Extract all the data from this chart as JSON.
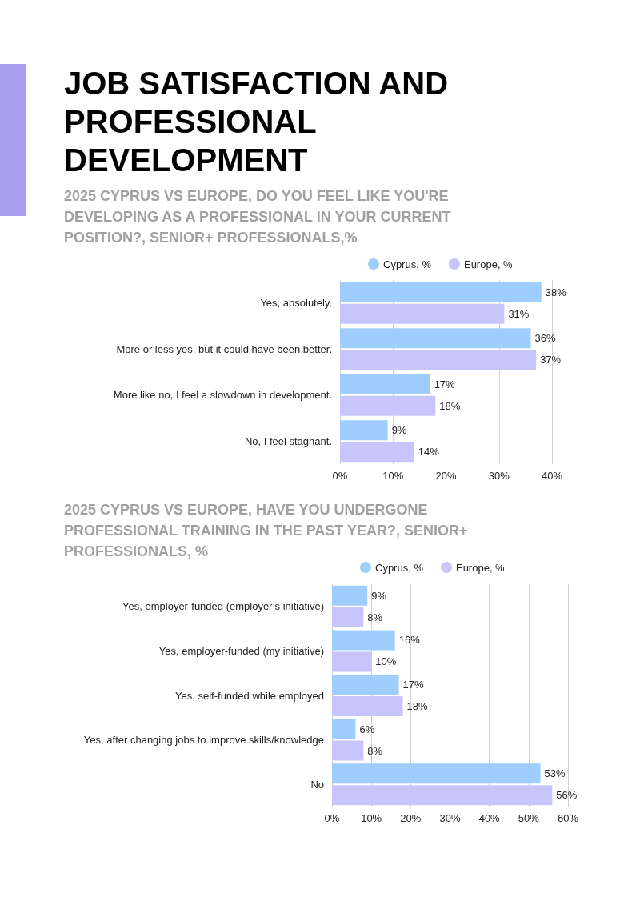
{
  "chart_data": [
    {
      "type": "bar",
      "orientation": "horizontal",
      "title": "JOB SATISFACTION AND PROFESSIONAL DEVELOPMENT",
      "subtitle": "2025 CYPRUS VS EUROPE, DO YOU FEEL LIKE YOU'RE DEVELOPING AS A PROFESSIONAL IN YOUR CURRENT POSITION?, SENIOR+ PROFESSIONALS,%",
      "categories": [
        "Yes, absolutely.",
        "More or less yes, but it could have been better.",
        "More like no, I feel a slowdown in development.",
        "No, I feel stagnant."
      ],
      "series": [
        {
          "name": "Cyprus, %",
          "color": "#9fcdfd",
          "values": [
            38,
            36,
            17,
            9
          ],
          "value_labels": [
            "38%",
            "36%",
            "17%",
            "9%"
          ]
        },
        {
          "name": "Europe, %",
          "color": "#c8c5fd",
          "values": [
            31,
            37,
            18,
            14
          ],
          "value_labels": [
            "31%",
            "37%",
            "18%",
            "14%"
          ]
        }
      ],
      "xlim": [
        0,
        40
      ],
      "xticks": [
        {
          "value": 0,
          "label": "0%"
        },
        {
          "value": 10,
          "label": "10%"
        },
        {
          "value": 20,
          "label": "20%"
        },
        {
          "value": 30,
          "label": "30%"
        },
        {
          "value": 40,
          "label": "40%"
        }
      ],
      "grid": "x",
      "legend": "top"
    },
    {
      "type": "bar",
      "orientation": "horizontal",
      "title": "2025 CYPRUS VS EUROPE, HAVE YOU UNDERGONE PROFESSIONAL TRAINING IN THE PAST YEAR?, SENIOR+ PROFESSIONALS, %",
      "categories": [
        "Yes, employer-funded (employer’s initiative)",
        "Yes, employer-funded (my initiative)",
        "Yes, self-funded while employed",
        "Yes, after changing jobs to improve skills/knowledge",
        "No"
      ],
      "series": [
        {
          "name": "Cyprus, %",
          "color": "#9fcdfd",
          "values": [
            9,
            16,
            17,
            6,
            53
          ],
          "value_labels": [
            "9%",
            "16%",
            "17%",
            "6%",
            "53%"
          ]
        },
        {
          "name": "Europe, %",
          "color": "#c8c5fd",
          "values": [
            8,
            10,
            18,
            8,
            56
          ],
          "value_labels": [
            "8%",
            "10%",
            "18%",
            "8%",
            "56%"
          ]
        }
      ],
      "xlim": [
        0,
        60
      ],
      "xticks": [
        {
          "value": 0,
          "label": "0%"
        },
        {
          "value": 10,
          "label": "10%"
        },
        {
          "value": 20,
          "label": "20%"
        },
        {
          "value": 30,
          "label": "30%"
        },
        {
          "value": 40,
          "label": "40%"
        },
        {
          "value": 50,
          "label": "50%"
        },
        {
          "value": 60,
          "label": "60%"
        }
      ],
      "grid": "x",
      "legend": "top"
    }
  ]
}
